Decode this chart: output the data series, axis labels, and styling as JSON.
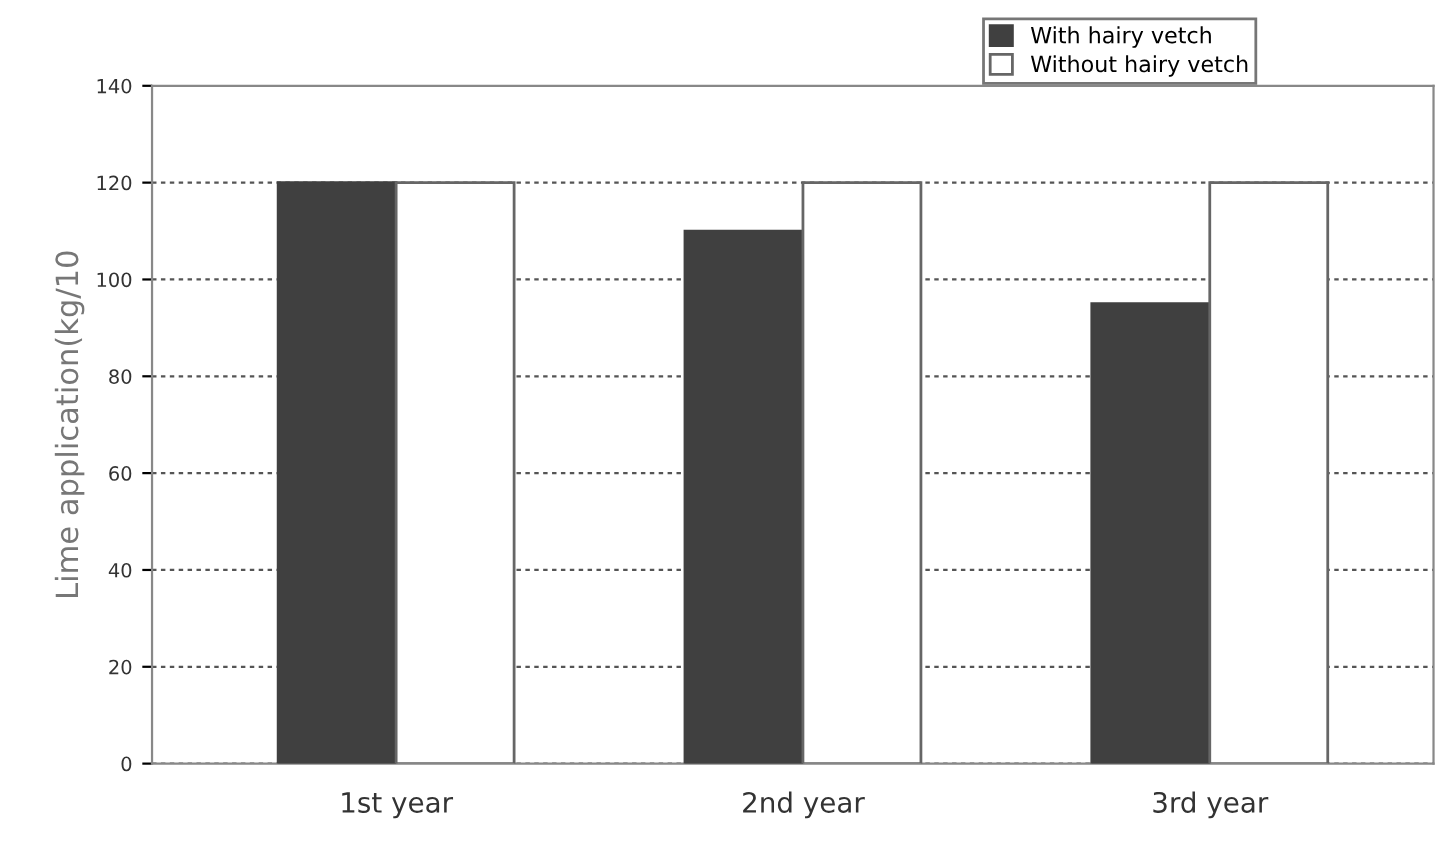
{
  "chart_data": {
    "type": "bar",
    "ylabel": "Lime application(kg/10",
    "categories": [
      "1st year",
      "2nd year",
      "3rd year"
    ],
    "series": [
      {
        "name": "With hairy vetch",
        "color": "#404040",
        "values": [
          120,
          110,
          95
        ]
      },
      {
        "name": "Without hairy vetch",
        "color": "#ffffff",
        "values": [
          120,
          120,
          120
        ]
      }
    ],
    "ylim": [
      0,
      140
    ],
    "yticks": [
      0,
      20,
      40,
      60,
      80,
      100,
      120,
      140
    ],
    "grid": "y",
    "legend": "top right"
  }
}
